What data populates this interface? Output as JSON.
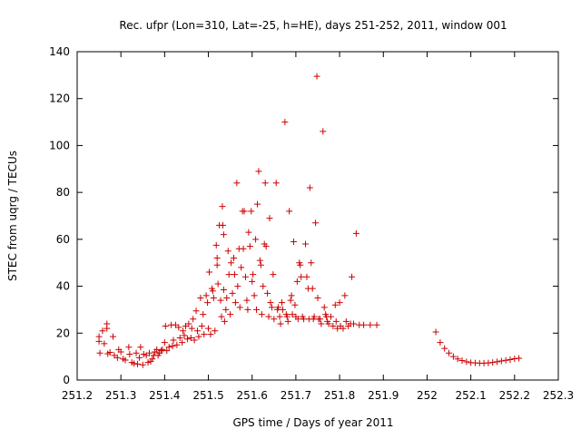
{
  "chart_data": {
    "type": "scatter",
    "title": "Rec. ufpr (Lon=310, Lat=-25, h=HE), days 251-252, 2011, window 001",
    "xlabel": "GPS time / Days of year 2011",
    "ylabel": "STEC from uqrg / TECUs",
    "xlim": [
      251.2,
      252.3
    ],
    "ylim": [
      0,
      140
    ],
    "xticks": [
      "251.2",
      "251.3",
      "251.4",
      "251.5",
      "251.6",
      "251.7",
      "251.8",
      "251.9",
      "252",
      "252.1",
      "252.2",
      "252.3"
    ],
    "yticks": [
      "0",
      "20",
      "40",
      "60",
      "80",
      "100",
      "120",
      "140"
    ],
    "grid": false,
    "legend": "none",
    "marker": "+",
    "color": "#cc0000",
    "points": [
      [
        251.25,
        18.5
      ],
      [
        251.25,
        16.5
      ],
      [
        251.252,
        11.5
      ],
      [
        251.258,
        21
      ],
      [
        251.262,
        15.5
      ],
      [
        251.268,
        24
      ],
      [
        251.268,
        22
      ],
      [
        251.27,
        11.2
      ],
      [
        251.275,
        11.8
      ],
      [
        251.282,
        18.5
      ],
      [
        251.285,
        10.5
      ],
      [
        251.292,
        9.5
      ],
      [
        251.295,
        13
      ],
      [
        251.3,
        12
      ],
      [
        251.305,
        9
      ],
      [
        251.31,
        8.5
      ],
      [
        251.318,
        14
      ],
      [
        251.32,
        11
      ],
      [
        251.325,
        7.5
      ],
      [
        251.33,
        7
      ],
      [
        251.335,
        11.5
      ],
      [
        251.338,
        6.8
      ],
      [
        251.342,
        9.5
      ],
      [
        251.345,
        14
      ],
      [
        251.35,
        6.5
      ],
      [
        251.352,
        11
      ],
      [
        251.358,
        10.5
      ],
      [
        251.362,
        7.5
      ],
      [
        251.365,
        11.5
      ],
      [
        251.368,
        8
      ],
      [
        251.372,
        9
      ],
      [
        251.375,
        10.5
      ],
      [
        251.378,
        12
      ],
      [
        251.382,
        13
      ],
      [
        251.385,
        10.5
      ],
      [
        251.388,
        11.5
      ],
      [
        251.392,
        12.5
      ],
      [
        251.395,
        13
      ],
      [
        251.4,
        16
      ],
      [
        251.402,
        23
      ],
      [
        251.405,
        12.5
      ],
      [
        251.41,
        14
      ],
      [
        251.415,
        23.5
      ],
      [
        251.418,
        14.5
      ],
      [
        251.42,
        17
      ],
      [
        251.425,
        23.5
      ],
      [
        251.428,
        15
      ],
      [
        251.432,
        22.5
      ],
      [
        251.435,
        18
      ],
      [
        251.44,
        16
      ],
      [
        251.442,
        21
      ],
      [
        251.445,
        19
      ],
      [
        251.448,
        23
      ],
      [
        251.452,
        17.5
      ],
      [
        251.455,
        24
      ],
      [
        251.46,
        18
      ],
      [
        251.462,
        22
      ],
      [
        251.465,
        26
      ],
      [
        251.468,
        17
      ],
      [
        251.472,
        29.5
      ],
      [
        251.475,
        21
      ],
      [
        251.478,
        18.5
      ],
      [
        251.482,
        35
      ],
      [
        251.485,
        23
      ],
      [
        251.488,
        28
      ],
      [
        251.49,
        19.5
      ],
      [
        251.495,
        36
      ],
      [
        251.498,
        33
      ],
      [
        251.5,
        22
      ],
      [
        251.502,
        46
      ],
      [
        251.505,
        19.5
      ],
      [
        251.508,
        39
      ],
      [
        251.51,
        38
      ],
      [
        251.512,
        35
      ],
      [
        251.515,
        21
      ],
      [
        251.518,
        57.5
      ],
      [
        251.52,
        52
      ],
      [
        251.52,
        49
      ],
      [
        251.522,
        41
      ],
      [
        251.525,
        66
      ],
      [
        251.528,
        34
      ],
      [
        251.53,
        27
      ],
      [
        251.532,
        74
      ],
      [
        251.533,
        66
      ],
      [
        251.535,
        62
      ],
      [
        251.535,
        38.5
      ],
      [
        251.537,
        25
      ],
      [
        251.54,
        30
      ],
      [
        251.542,
        35
      ],
      [
        251.545,
        55
      ],
      [
        251.547,
        45
      ],
      [
        251.55,
        28
      ],
      [
        251.552,
        50
      ],
      [
        251.555,
        37
      ],
      [
        251.558,
        52
      ],
      [
        251.56,
        45
      ],
      [
        251.562,
        33
      ],
      [
        251.565,
        84
      ],
      [
        251.567,
        40
      ],
      [
        251.57,
        56
      ],
      [
        251.572,
        31
      ],
      [
        251.575,
        48
      ],
      [
        251.578,
        72
      ],
      [
        251.58,
        56
      ],
      [
        251.582,
        72
      ],
      [
        251.585,
        44
      ],
      [
        251.588,
        34
      ],
      [
        251.59,
        30
      ],
      [
        251.592,
        63
      ],
      [
        251.595,
        57
      ],
      [
        251.598,
        72
      ],
      [
        251.6,
        42
      ],
      [
        251.602,
        45
      ],
      [
        251.605,
        36
      ],
      [
        251.608,
        60
      ],
      [
        251.61,
        30
      ],
      [
        251.612,
        75
      ],
      [
        251.615,
        89
      ],
      [
        251.618,
        51
      ],
      [
        251.62,
        49
      ],
      [
        251.622,
        28
      ],
      [
        251.625,
        40
      ],
      [
        251.628,
        58
      ],
      [
        251.63,
        84
      ],
      [
        251.632,
        57
      ],
      [
        251.635,
        37
      ],
      [
        251.638,
        27
      ],
      [
        251.64,
        69
      ],
      [
        251.642,
        33
      ],
      [
        251.645,
        31
      ],
      [
        251.648,
        45
      ],
      [
        251.65,
        26
      ],
      [
        251.655,
        84
      ],
      [
        251.658,
        30
      ],
      [
        251.66,
        31
      ],
      [
        251.663,
        27
      ],
      [
        251.665,
        24
      ],
      [
        251.668,
        33
      ],
      [
        251.67,
        30
      ],
      [
        251.675,
        110
      ],
      [
        251.678,
        28
      ],
      [
        251.68,
        27
      ],
      [
        251.682,
        25
      ],
      [
        251.685,
        72
      ],
      [
        251.688,
        34
      ],
      [
        251.69,
        36
      ],
      [
        251.692,
        28
      ],
      [
        251.695,
        59
      ],
      [
        251.698,
        32
      ],
      [
        251.7,
        27
      ],
      [
        251.703,
        42
      ],
      [
        251.705,
        26
      ],
      [
        251.708,
        50
      ],
      [
        251.71,
        49
      ],
      [
        251.712,
        44
      ],
      [
        251.715,
        27
      ],
      [
        251.718,
        26
      ],
      [
        251.722,
        58
      ],
      [
        251.725,
        44
      ],
      [
        251.728,
        39
      ],
      [
        251.73,
        26
      ],
      [
        251.732,
        82
      ],
      [
        251.735,
        50
      ],
      [
        251.738,
        39
      ],
      [
        251.74,
        26
      ],
      [
        251.742,
        27
      ],
      [
        251.745,
        67
      ],
      [
        251.748,
        129.5
      ],
      [
        251.75,
        35
      ],
      [
        251.752,
        26
      ],
      [
        251.755,
        26
      ],
      [
        251.758,
        24
      ],
      [
        251.762,
        106
      ],
      [
        251.765,
        31
      ],
      [
        251.768,
        28
      ],
      [
        251.77,
        27
      ],
      [
        251.772,
        25
      ],
      [
        251.775,
        24
      ],
      [
        251.78,
        27
      ],
      [
        251.785,
        23
      ],
      [
        251.79,
        32
      ],
      [
        251.792,
        25
      ],
      [
        251.795,
        22
      ],
      [
        251.8,
        33
      ],
      [
        251.802,
        23
      ],
      [
        251.808,
        22
      ],
      [
        251.812,
        36
      ],
      [
        251.815,
        25
      ],
      [
        251.82,
        23
      ],
      [
        251.825,
        24
      ],
      [
        251.828,
        44
      ],
      [
        251.832,
        24
      ],
      [
        251.838,
        62.5
      ],
      [
        251.845,
        23.5
      ],
      [
        251.855,
        23.5
      ],
      [
        251.87,
        23.5
      ],
      [
        251.885,
        23.5
      ],
      [
        252.02,
        20.5
      ],
      [
        252.03,
        16
      ],
      [
        252.04,
        13.5
      ],
      [
        252.05,
        11.5
      ],
      [
        252.06,
        10
      ],
      [
        252.07,
        9
      ],
      [
        252.08,
        8.3
      ],
      [
        252.09,
        7.8
      ],
      [
        252.1,
        7.4
      ],
      [
        252.11,
        7.3
      ],
      [
        252.12,
        7.2
      ],
      [
        252.13,
        7.2
      ],
      [
        252.14,
        7.3
      ],
      [
        252.15,
        7.5
      ],
      [
        252.16,
        7.8
      ],
      [
        252.17,
        8.1
      ],
      [
        252.18,
        8.4
      ],
      [
        252.19,
        8.7
      ],
      [
        252.2,
        9.1
      ],
      [
        252.21,
        9.3
      ]
    ]
  }
}
